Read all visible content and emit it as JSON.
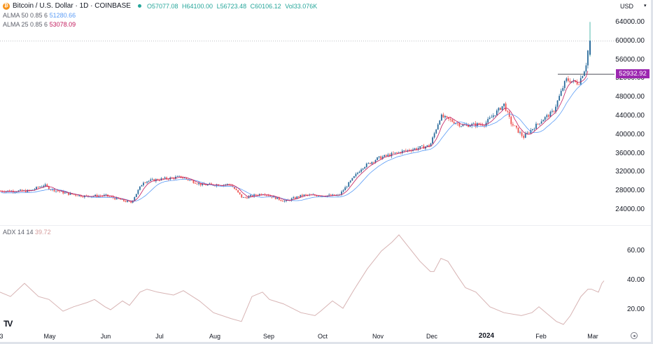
{
  "header": {
    "symbol_title": "Bitcoin / U.S. Dollar · 1D · COINBASE",
    "symbol_icon": "bitcoin-icon",
    "ohlc": {
      "open": "O57077.08",
      "high": "H64100.00",
      "low": "L56723.48",
      "close": "C60106.12",
      "volume": "Vol33.076K"
    },
    "alma50": {
      "label": "ALMA 50 0.85 6",
      "value": "51280.66"
    },
    "alma25": {
      "label": "ALMA 25 0.85 6",
      "value": "53078.09"
    }
  },
  "price_axis": {
    "currency": "USD",
    "ticks": [
      "64000.00",
      "60000.00",
      "56000.00",
      "52000.00",
      "48000.00",
      "44000.00",
      "40000.00",
      "36000.00",
      "32000.00",
      "28000.00",
      "24000.00"
    ],
    "current_price_tag": "52932.92"
  },
  "adx_pane": {
    "label": "ADX 14 14",
    "value": "39.72",
    "ticks": [
      "60.00",
      "40.00",
      "20.00"
    ]
  },
  "time_axis": {
    "labels": [
      "3",
      "May",
      "Jun",
      "Jul",
      "Aug",
      "Sep",
      "Oct",
      "Nov",
      "Dec",
      "2024",
      "Feb",
      "Mar"
    ]
  },
  "colors": {
    "up": "#26a69a",
    "up_dark": "#2a6b9c",
    "down": "#ef5350",
    "alma50": "#5b9cf6",
    "alma25": "#c2185b",
    "adx": "#d7b3b3",
    "price_tag": "#9c27b0"
  },
  "chart_data": [
    {
      "type": "candlestick",
      "title": "Bitcoin / U.S. Dollar · 1D · COINBASE",
      "ylabel": "USD",
      "ylim": [
        22000,
        66000
      ],
      "x_labels": [
        "May",
        "Jun",
        "Jul",
        "Aug",
        "Sep",
        "Oct",
        "Nov",
        "Dec",
        "2024",
        "Feb",
        "Mar"
      ],
      "approx_close_path": [
        {
          "x": "Apr 20",
          "close": 28000
        },
        {
          "x": "Apr 28",
          "close": 29300
        },
        {
          "x": "May 1",
          "close": 28500
        },
        {
          "x": "May 10",
          "close": 27500
        },
        {
          "x": "May 20",
          "close": 26900
        },
        {
          "x": "Jun 1",
          "close": 27000
        },
        {
          "x": "Jun 15",
          "close": 25500
        },
        {
          "x": "Jun 22",
          "close": 30000
        },
        {
          "x": "Jul 1",
          "close": 30500
        },
        {
          "x": "Jul 13",
          "close": 31000
        },
        {
          "x": "Jul 25",
          "close": 29300
        },
        {
          "x": "Aug 10",
          "close": 29400
        },
        {
          "x": "Aug 17",
          "close": 26500
        },
        {
          "x": "Aug 29",
          "close": 27500
        },
        {
          "x": "Sep 10",
          "close": 25800
        },
        {
          "x": "Sep 20",
          "close": 27100
        },
        {
          "x": "Oct 10",
          "close": 27000
        },
        {
          "x": "Oct 23",
          "close": 33000
        },
        {
          "x": "Nov 1",
          "close": 35000
        },
        {
          "x": "Nov 15",
          "close": 36500
        },
        {
          "x": "Nov 30",
          "close": 37700
        },
        {
          "x": "Dec 6",
          "close": 44000
        },
        {
          "x": "Dec 18",
          "close": 42000
        },
        {
          "x": "Dec 31",
          "close": 42300
        },
        {
          "x": "Jan 11",
          "close": 46500
        },
        {
          "x": "Jan 15",
          "close": 42500
        },
        {
          "x": "Jan 22",
          "close": 39500
        },
        {
          "x": "Feb 1",
          "close": 43000
        },
        {
          "x": "Feb 8",
          "close": 45000
        },
        {
          "x": "Feb 15",
          "close": 51800
        },
        {
          "x": "Feb 22",
          "close": 51000
        },
        {
          "x": "Feb 26",
          "close": 54500
        },
        {
          "x": "Feb 28",
          "close": 60106
        }
      ],
      "series": [
        {
          "name": "ALMA 50 0.85 6",
          "last": 51280.66
        },
        {
          "name": "ALMA 25 0.85 6",
          "last": 53078.09
        }
      ],
      "horizontal_line": 52932.92,
      "dotted_line": 60000
    },
    {
      "type": "line",
      "title": "ADX 14 14",
      "ylim": [
        8,
        72
      ],
      "yticks": [
        20,
        40,
        60
      ],
      "series": [
        {
          "name": "ADX",
          "points": [
            [
              0,
              32
            ],
            [
              15,
              29
            ],
            [
              35,
              38
            ],
            [
              55,
              29
            ],
            [
              70,
              27
            ],
            [
              90,
              19
            ],
            [
              105,
              22
            ],
            [
              125,
              25
            ],
            [
              135,
              27
            ],
            [
              150,
              22
            ],
            [
              158,
              20
            ],
            [
              175,
              26
            ],
            [
              185,
              23
            ],
            [
              200,
              32
            ],
            [
              210,
              34
            ],
            [
              225,
              32
            ],
            [
              248,
              30
            ],
            [
              262,
              33
            ],
            [
              285,
              26
            ],
            [
              305,
              18
            ],
            [
              330,
              14
            ],
            [
              345,
              12
            ],
            [
              360,
              29
            ],
            [
              375,
              32
            ],
            [
              385,
              27
            ],
            [
              405,
              24
            ],
            [
              430,
              18
            ],
            [
              450,
              16
            ],
            [
              458,
              19
            ],
            [
              475,
              26
            ],
            [
              490,
              21
            ],
            [
              505,
              33
            ],
            [
              525,
              48
            ],
            [
              545,
              60
            ],
            [
              560,
              66
            ],
            [
              570,
              71
            ],
            [
              585,
              62
            ],
            [
              600,
              53
            ],
            [
              615,
              46
            ],
            [
              620,
              46
            ],
            [
              630,
              55
            ],
            [
              640,
              53
            ],
            [
              655,
              42
            ],
            [
              665,
              35
            ],
            [
              680,
              32
            ],
            [
              700,
              22
            ],
            [
              720,
              18
            ],
            [
              745,
              16
            ],
            [
              760,
              18
            ],
            [
              770,
              22
            ],
            [
              780,
              18
            ],
            [
              795,
              12
            ],
            [
              805,
              10
            ],
            [
              815,
              16
            ],
            [
              830,
              29
            ],
            [
              840,
              34
            ],
            [
              845,
              34
            ],
            [
              855,
              32
            ],
            [
              860,
              38
            ],
            [
              863,
              39.72
            ]
          ],
          "last": 39.72
        }
      ]
    }
  ]
}
